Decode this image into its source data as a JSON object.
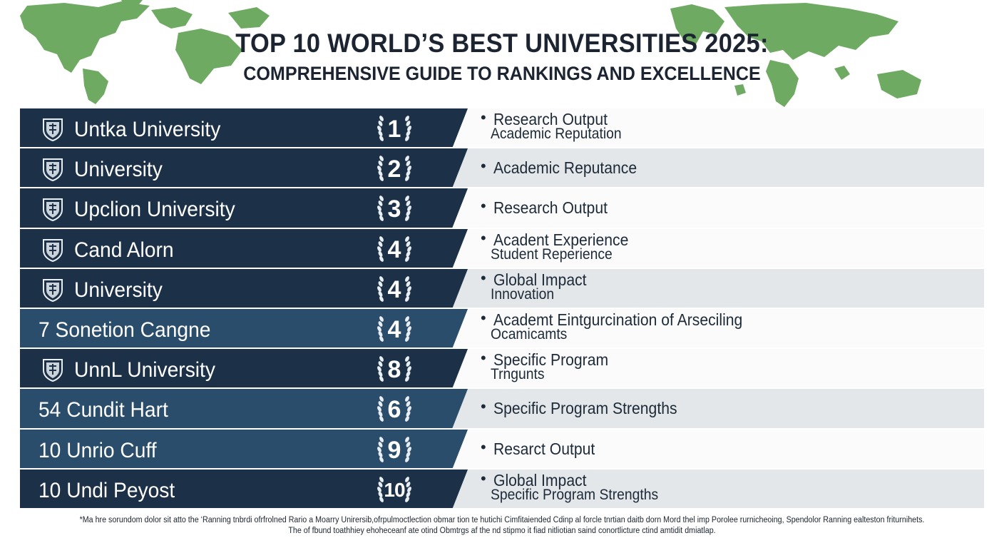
{
  "title": {
    "line1": "TOP 10 WORLD’S BEST UNIVERSITIES 2025:",
    "line2": "COMPREHENSIVE GUIDE TO RANKINGS AND EXCELLENCE"
  },
  "colors": {
    "dark_row": "#1c3147",
    "blue_row": "#2a4d6b",
    "light_row": "#e4e7ea",
    "white_row": "#fbfbfc",
    "map_green": "#6eaa62",
    "network_green": "#5b9e50"
  },
  "rows": [
    {
      "name": "Untka University",
      "rank": "1",
      "crest": "shield-crest-icon",
      "criteria_line1": "Research Output",
      "criteria_line2": "Academic Reputation"
    },
    {
      "name": "University",
      "rank": "2",
      "crest": "shield-crest-icon",
      "criteria_line1": "Academic Reputance",
      "criteria_line2": ""
    },
    {
      "name": "Upclion University",
      "rank": "3",
      "crest": "shield-crest-icon",
      "criteria_line1": "Research Output",
      "criteria_line2": ""
    },
    {
      "name": "Cand Alorn",
      "rank": "4",
      "crest": "shield-crest-icon",
      "criteria_line1": "Acadent Experience",
      "criteria_line2": "Student Reperience"
    },
    {
      "name": "University",
      "rank": "4",
      "crest": "shield-crest-icon",
      "criteria_line1": "Global Impact",
      "criteria_line2": "Innovation"
    },
    {
      "name": "7  Sonetion Cangne",
      "rank": "4",
      "crest": "",
      "criteria_line1": "Academt Eintgurcination of Arseciling",
      "criteria_line2": "Ocamicamts"
    },
    {
      "name": "UnnL University",
      "rank": "8",
      "crest": "shield-crest-icon",
      "criteria_line1": "Specific Program",
      "criteria_line2": "Trngunts"
    },
    {
      "name": "54 Cundit Hart",
      "rank": "6",
      "crest": "",
      "criteria_line1": "Specific Program Strengths",
      "criteria_line2": ""
    },
    {
      "name": "10 Unrio Cuff",
      "rank": "9",
      "crest": "",
      "criteria_line1": "Resarct Output",
      "criteria_line2": ""
    },
    {
      "name": "10 Undi Peyost",
      "rank": "10",
      "crest": "",
      "criteria_line1": "Global Impact",
      "criteria_line2": "Specific Program Strengths"
    }
  ],
  "footnote": {
    "line1": "*Ma hre sorundom dolor sit atto the  ‘Ranning tnbrdi ofrfrolned Rario a Moarry Unirersib,ofrpulmoctlection obmar tion te hutichi Cimfitaiended Cdinp al forcle tnrtian daitb dorn Mord thel imp Porolee rurnicheoing, Spendolor Ranning ealteston friturnihets.",
    "line2": "The of fbund toathhiey ehoheceanf ate otind  Obmtrgs af the nd stipmo it fiad nitliotian saind conortlicture ctind amtidit dmiatlap."
  }
}
